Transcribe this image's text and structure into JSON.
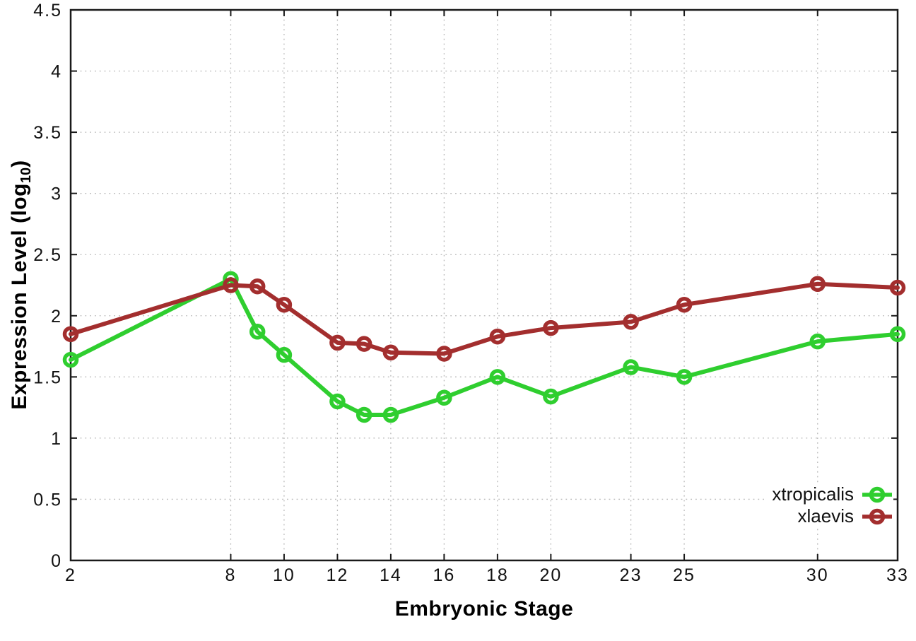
{
  "figure": {
    "xlabel": "Embryonic Stage",
    "ylabel_prefix": "Expression Level (log",
    "ylabel_sub": "10",
    "ylabel_suffix": ")"
  },
  "chart_data": {
    "type": "line",
    "title": "",
    "xlabel": "Embryonic Stage",
    "ylabel": "Expression Level (log10)",
    "xlim": [
      2,
      33
    ],
    "ylim": [
      0,
      4.5
    ],
    "grid": "dotted-both",
    "legend_position": "inside-right-lower",
    "x": [
      2,
      8,
      9,
      10,
      12,
      13,
      14,
      16,
      18,
      20,
      23,
      25,
      30,
      33
    ],
    "xticks": [
      2,
      8,
      10,
      12,
      14,
      16,
      18,
      20,
      23,
      25,
      30,
      33
    ],
    "xtick_labels": [
      "2",
      "8",
      "10",
      "12",
      "14",
      "16",
      "18",
      "20",
      "23",
      "25",
      "30",
      "33"
    ],
    "yticks": [
      0,
      0.5,
      1,
      1.5,
      2,
      2.5,
      3,
      3.5,
      4,
      4.5
    ],
    "ytick_labels": [
      "0",
      "0.5",
      "1",
      "1.5",
      "2",
      "2.5",
      "3",
      "3.5",
      "4",
      "4.5"
    ],
    "series": [
      {
        "name": "xtropicalis",
        "color": "#2fce2f",
        "marker": "open-circle",
        "values": [
          1.64,
          2.3,
          1.87,
          1.68,
          1.3,
          1.19,
          1.19,
          1.33,
          1.5,
          1.34,
          1.58,
          1.5,
          1.79,
          1.85
        ]
      },
      {
        "name": "xlaevis",
        "color": "#a32e2e",
        "marker": "open-circle",
        "values": [
          1.85,
          2.25,
          2.24,
          2.09,
          1.78,
          1.77,
          1.7,
          1.69,
          1.83,
          1.9,
          1.95,
          2.09,
          2.26,
          2.23
        ]
      }
    ]
  },
  "colors": {
    "background": "#ffffff",
    "grid": "#b8b8b8",
    "axis": "#1a1a1a",
    "text": "#000000"
  }
}
